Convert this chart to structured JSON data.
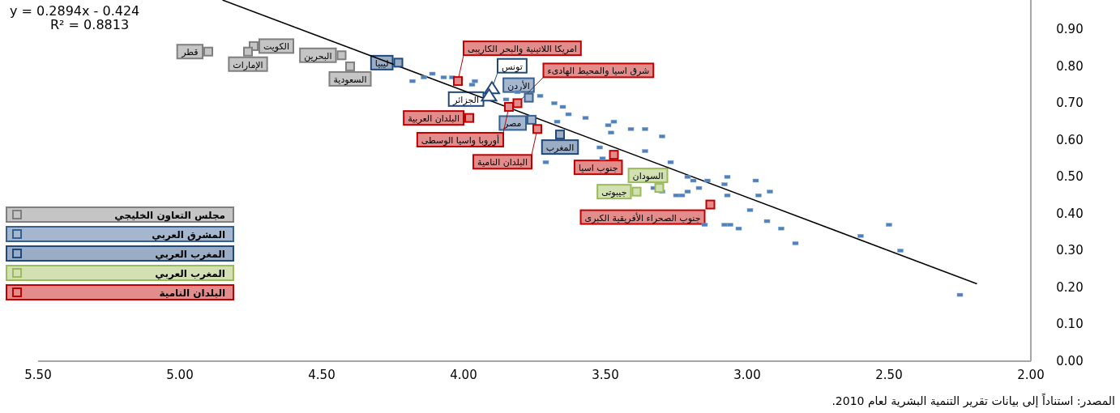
{
  "chart_data": {
    "type": "scatter",
    "marker": "square",
    "legend": "left",
    "grid": false,
    "xlim": [
      5.5,
      2.0
    ],
    "xticks": [
      {
        "value": 5.5,
        "label": "5.50"
      },
      {
        "value": 5.0,
        "label": "5.00"
      },
      {
        "value": 4.5,
        "label": "4.50"
      },
      {
        "value": 4.0,
        "label": "4.00"
      },
      {
        "value": 3.5,
        "label": "3.50"
      },
      {
        "value": 3.0,
        "label": "3.00"
      },
      {
        "value": 2.5,
        "label": "2.50"
      },
      {
        "value": 2.0,
        "label": "2.00"
      }
    ],
    "ylim": [
      0,
      0.98
    ],
    "yticks": [
      {
        "value": 0,
        "label": "0.00"
      },
      {
        "value": 0.1,
        "label": "0.10"
      },
      {
        "value": 0.2,
        "label": "0.20"
      },
      {
        "value": 0.3,
        "label": "0.30"
      },
      {
        "value": 0.4,
        "label": "0.40"
      },
      {
        "value": 0.5,
        "label": "0.50"
      },
      {
        "value": 0.6,
        "label": "0.60"
      },
      {
        "value": 0.7,
        "label": "0.70"
      },
      {
        "value": 0.8,
        "label": "0.80"
      },
      {
        "value": 0.9,
        "label": "0.90"
      }
    ],
    "series": [
      {
        "color": "#4f81bd",
        "x": [
          3.52,
          3.36,
          3.27,
          3.71,
          3.51,
          3.33,
          3.3,
          3.25,
          3.23,
          3.21,
          3.21,
          3.19,
          3.17,
          3.14,
          3.08,
          3.07,
          3.07,
          2.97,
          2.96,
          2.92,
          2.99,
          2.93,
          3.15,
          3.08,
          3.06,
          3.03,
          2.88,
          2.83,
          2.6,
          2.5,
          2.46,
          2.25,
          4.18,
          4.14,
          4.11,
          4.07,
          4.04,
          3.97,
          3.96,
          3.85,
          3.81,
          3.73,
          3.68,
          3.65,
          3.63,
          3.67,
          3.57,
          3.49,
          3.47,
          3.48,
          3.41,
          3.36,
          3.3
        ],
        "values": [
          0.58,
          0.57,
          0.54,
          0.54,
          0.55,
          0.47,
          0.46,
          0.45,
          0.45,
          0.46,
          0.5,
          0.49,
          0.47,
          0.49,
          0.48,
          0.5,
          0.45,
          0.49,
          0.45,
          0.46,
          0.41,
          0.38,
          0.37,
          0.37,
          0.37,
          0.36,
          0.36,
          0.32,
          0.34,
          0.37,
          0.3,
          0.18,
          0.76,
          0.77,
          0.78,
          0.77,
          0.77,
          0.75,
          0.76,
          0.71,
          0.73,
          0.72,
          0.7,
          0.69,
          0.67,
          0.65,
          0.66,
          0.64,
          0.65,
          0.62,
          0.63,
          0.63,
          0.61
        ]
      },
      {
        "name": "مجلس التعاون الخليجي",
        "color": "#7f7f7f",
        "x": [
          4.9,
          4.74,
          4.76,
          4.43,
          4.4
        ],
        "values": [
          0.84,
          0.855,
          0.84,
          0.83,
          0.8
        ],
        "value_labels": [
          "قطر",
          "الكويت",
          "الإمارات",
          "البحرين",
          "السعودية"
        ]
      },
      {
        "name": "المشرق العربي",
        "color": "#376092",
        "x": [
          3.77,
          3.76
        ],
        "values": [
          0.715,
          0.655
        ],
        "value_labels": [
          "الأردن",
          "مصر"
        ]
      },
      {
        "name": "المغرب العربي",
        "color": "#1f497d",
        "x": [
          4.23,
          3.66
        ],
        "values": [
          0.81,
          0.615
        ],
        "value_labels": [
          "ليبيا",
          "المغرب"
        ]
      },
      {
        "color": "#1f497d",
        "marker": "triangle",
        "x": [
          3.9,
          3.91
        ],
        "values": [
          0.74,
          0.72
        ],
        "value_labels": [
          "تونس",
          "الجزائر"
        ]
      },
      {
        "name": "المغرب العربي",
        "color": "#9bbb59",
        "x": [
          3.31,
          3.39
        ],
        "values": [
          0.47,
          0.46
        ],
        "value_labels": [
          "السودان",
          "جيبوتى"
        ]
      },
      {
        "name": "البلدان النامية",
        "color": "#c00000",
        "x": [
          4.02,
          3.81,
          3.84,
          3.98,
          3.74,
          3.47,
          3.13
        ],
        "values": [
          0.76,
          0.7,
          0.69,
          0.66,
          0.63,
          0.56,
          0.425
        ],
        "value_labels": [
          "امريكا اللاتينية والبحر الكاريبى",
          "شرق اسيا والمحيط الهادىء",
          "أوروبا واسيا الوسطى",
          "البلدان العربية",
          "البلدان النامية",
          "جنوب اسيا",
          "جنوب الصحراء الأفريقية الكبرى"
        ]
      },
      {
        "type": "line",
        "marker": "none",
        "color": "#000000",
        "x": [
          4.85,
          2.19
        ],
        "values": [
          0.98,
          0.21
        ]
      }
    ],
    "annotations": [
      "y = 0.2894x - 0.424",
      "R² = 0.8813",
      "المصدر: استناداً إلى بيانات تقرير التنمية البشرية لعام 2010."
    ]
  }
}
